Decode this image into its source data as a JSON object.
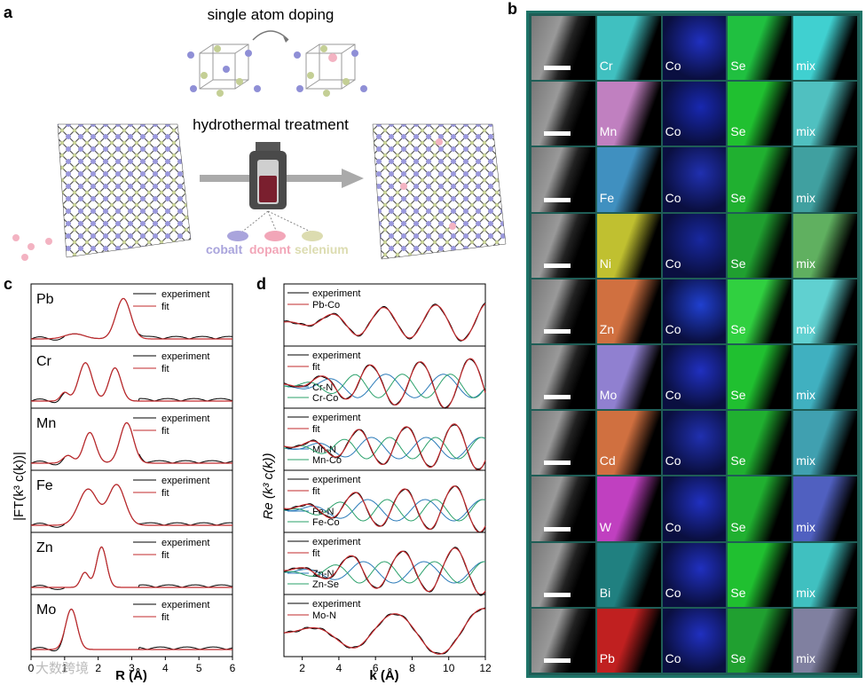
{
  "panel_labels": {
    "a": "a",
    "b": "b",
    "c": "c",
    "d": "d"
  },
  "panel_a": {
    "title": "single atom doping",
    "process": "hydrothermal treatment",
    "legend": [
      {
        "name": "cobalt",
        "color": "#a9a4dc"
      },
      {
        "name": "dopant",
        "color": "#f2a6b8"
      },
      {
        "name": "selenium",
        "color": "#dcdcb0"
      }
    ]
  },
  "panel_b": {
    "rows": [
      {
        "dopant": "Cr",
        "colors": {
          "dopant": "#40c0c0",
          "co": "#2030c0",
          "se": "#20c040",
          "mix": "#40d0d0"
        }
      },
      {
        "dopant": "Mn",
        "colors": {
          "dopant": "#c080c0",
          "co": "#1828b0",
          "se": "#20c030",
          "mix": "#50c0c0"
        }
      },
      {
        "dopant": "Fe",
        "colors": {
          "dopant": "#4090c0",
          "co": "#2030b0",
          "se": "#20b030",
          "mix": "#40a0a0"
        }
      },
      {
        "dopant": "Ni",
        "colors": {
          "dopant": "#c0c030",
          "co": "#1828a0",
          "se": "#20a030",
          "mix": "#60b060"
        }
      },
      {
        "dopant": "Zn",
        "colors": {
          "dopant": "#d07040",
          "co": "#2040d0",
          "se": "#30d040",
          "mix": "#60d0d0"
        }
      },
      {
        "dopant": "Mo",
        "colors": {
          "dopant": "#9080d0",
          "co": "#2030c0",
          "se": "#20c030",
          "mix": "#40b0c0"
        }
      },
      {
        "dopant": "Cd",
        "colors": {
          "dopant": "#d07040",
          "co": "#2030b0",
          "se": "#20b030",
          "mix": "#40a0b0"
        }
      },
      {
        "dopant": "W",
        "colors": {
          "dopant": "#c040c0",
          "co": "#2030c0",
          "se": "#20b030",
          "mix": "#5060c0"
        }
      },
      {
        "dopant": "Bi",
        "colors": {
          "dopant": "#208080",
          "co": "#2030c0",
          "se": "#20c030",
          "mix": "#40c0c0"
        }
      },
      {
        "dopant": "Pb",
        "colors": {
          "dopant": "#c02020",
          "co": "#2030c0",
          "se": "#20a030",
          "mix": "#8080a0"
        }
      }
    ],
    "co_label": "Co",
    "se_label": "Se",
    "mix_label": "mix"
  },
  "chart_data": [
    {
      "type": "line",
      "panel": "c",
      "ylabel": "|FT(k³ c(k))|",
      "xlabel": "R (Å)",
      "xlim": [
        0,
        6
      ],
      "xticks": [
        "0",
        "1",
        "2",
        "3",
        "4",
        "5",
        "6"
      ],
      "subplots": [
        {
          "name": "Pb",
          "legend": [
            "experiment",
            "fit"
          ],
          "peaks": [
            {
              "x": 2.75,
              "h": 0.95,
              "w": 0.22
            },
            {
              "x": 1.3,
              "h": 0.12,
              "w": 0.3
            }
          ]
        },
        {
          "name": "Cr",
          "legend": [
            "experiment",
            "fit"
          ],
          "peaks": [
            {
              "x": 1.62,
              "h": 0.9,
              "w": 0.2
            },
            {
              "x": 2.5,
              "h": 0.78,
              "w": 0.18
            },
            {
              "x": 1.0,
              "h": 0.2,
              "w": 0.12
            }
          ]
        },
        {
          "name": "Mn",
          "legend": [
            "experiment",
            "fit"
          ],
          "peaks": [
            {
              "x": 1.75,
              "h": 0.72,
              "w": 0.18
            },
            {
              "x": 2.85,
              "h": 0.95,
              "w": 0.2
            },
            {
              "x": 1.1,
              "h": 0.18,
              "w": 0.15
            }
          ]
        },
        {
          "name": "Fe",
          "legend": [
            "experiment",
            "fit"
          ],
          "peaks": [
            {
              "x": 1.7,
              "h": 0.85,
              "w": 0.28
            },
            {
              "x": 2.55,
              "h": 0.95,
              "w": 0.25
            }
          ]
        },
        {
          "name": "Zn",
          "legend": [
            "experiment",
            "fit"
          ],
          "peaks": [
            {
              "x": 2.1,
              "h": 0.95,
              "w": 0.15
            },
            {
              "x": 1.6,
              "h": 0.35,
              "w": 0.12
            }
          ]
        },
        {
          "name": "Mo",
          "legend": [
            "experiment",
            "fit"
          ],
          "peaks": [
            {
              "x": 1.2,
              "h": 0.95,
              "w": 0.17
            }
          ]
        }
      ]
    },
    {
      "type": "line",
      "panel": "d",
      "ylabel": "Re (k³ c(k))",
      "xlabel": "k (Å)",
      "xlim": [
        1,
        12
      ],
      "xticks": [
        "2",
        "4",
        "6",
        "8",
        "10",
        "12"
      ],
      "subplots": [
        {
          "legend": [
            "experiment",
            "Pb-Co"
          ],
          "components": []
        },
        {
          "legend": [
            "experiment",
            "fit"
          ],
          "components": [
            "Cr-N",
            "Cr-Co"
          ]
        },
        {
          "legend": [
            "experiment",
            "fit"
          ],
          "components": [
            "Mn-N",
            "Mn-Co"
          ]
        },
        {
          "legend": [
            "experiment",
            "fit"
          ],
          "components": [
            "Fe-N",
            "Fe-Co"
          ]
        },
        {
          "legend": [
            "experiment",
            "fit"
          ],
          "components": [
            "Zn-N",
            "Zn-Se"
          ]
        },
        {
          "legend": [
            "experiment",
            "Mo-N"
          ],
          "components": []
        }
      ]
    }
  ],
  "watermark": "大数跨境"
}
